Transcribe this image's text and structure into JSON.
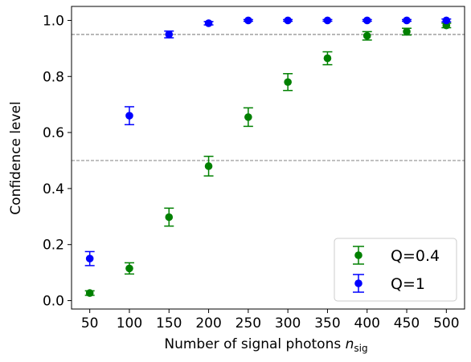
{
  "chart_data": {
    "type": "scatter",
    "x": [
      50,
      100,
      150,
      200,
      250,
      300,
      350,
      400,
      450,
      500
    ],
    "xlabel": "Number of signal photons",
    "xlabel_math": "n",
    "xlabel_math_sub": "sig",
    "ylabel": "Confidence level",
    "xlim": [
      27,
      523
    ],
    "ylim": [
      -0.03,
      1.05
    ],
    "xticks": [
      "50",
      "100",
      "150",
      "200",
      "250",
      "300",
      "350",
      "400",
      "450",
      "500"
    ],
    "yticks": [
      "0.0",
      "0.2",
      "0.4",
      "0.6",
      "0.8",
      "1.0"
    ],
    "ytick_values": [
      0.0,
      0.2,
      0.4,
      0.6,
      0.8,
      1.0
    ],
    "hlines": [
      0.95,
      0.5
    ],
    "hline_color": "#808080",
    "grid": false,
    "legend_position": "lower-right",
    "series": [
      {
        "name": "Q=0.4",
        "color": "#008000",
        "values": [
          0.027,
          0.115,
          0.298,
          0.48,
          0.655,
          0.78,
          0.865,
          0.945,
          0.96,
          0.982
        ],
        "errors": [
          0.008,
          0.02,
          0.032,
          0.035,
          0.033,
          0.03,
          0.023,
          0.015,
          0.012,
          0.008
        ]
      },
      {
        "name": "Q=1",
        "color": "#0000ff",
        "values": [
          0.15,
          0.66,
          0.95,
          0.99,
          1.0,
          1.0,
          1.0,
          1.0,
          1.0,
          1.0
        ],
        "errors": [
          0.025,
          0.032,
          0.012,
          0.006,
          0.003,
          0.003,
          0.003,
          0.003,
          0.003,
          0.005
        ]
      }
    ]
  }
}
